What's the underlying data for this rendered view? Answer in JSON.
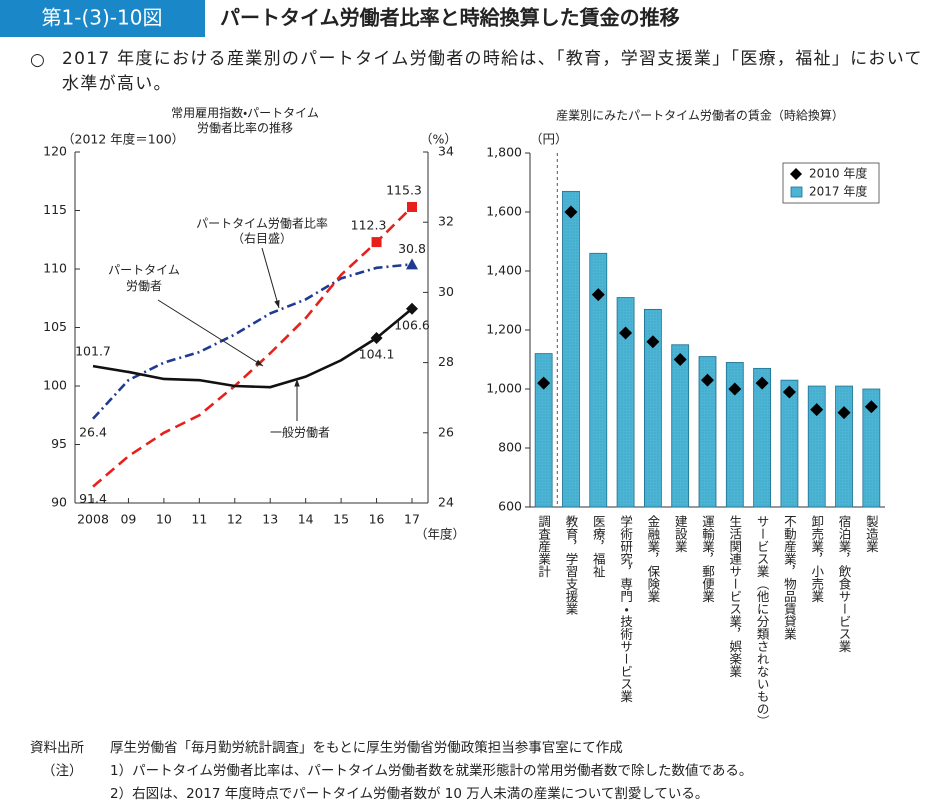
{
  "header": {
    "figure_number": "第1-(3)-10図",
    "title": "パートタイム労働者比率と時給換算した賃金の推移"
  },
  "lead": {
    "bullet": "○",
    "text": "2017 年度における産業別のパートタイム労働者の時給は、「教育，学習支援業」「医療，福祉」において水準が高い。"
  },
  "chart_data": [
    {
      "type": "line",
      "title": "常用雇用指数・パートタイム労働者比率の推移",
      "y_label": "（2012 年度＝100）",
      "y2_label": "（%）",
      "x_label": "（年度）",
      "categories": [
        "2008",
        "09",
        "10",
        "11",
        "12",
        "13",
        "14",
        "15",
        "16",
        "17"
      ],
      "ylim": [
        90,
        120
      ],
      "yticks": [
        90,
        95,
        100,
        105,
        110,
        115,
        120
      ],
      "y2lim": [
        24,
        34
      ],
      "y2ticks": [
        24,
        26,
        28,
        30,
        32,
        34
      ],
      "series": [
        {
          "name": "パートタイム労働者比率",
          "note": "（右目盛）",
          "axis": "y2",
          "color": "#1f3a93",
          "style": "dashdot",
          "values": [
            26.4,
            27.5,
            28.0,
            28.3,
            28.8,
            29.4,
            29.8,
            30.4,
            30.7,
            30.8
          ],
          "value_labels": [
            "26.4",
            null,
            null,
            null,
            null,
            null,
            null,
            null,
            null,
            "30.8"
          ]
        },
        {
          "name": "パートタイム労働者",
          "color": "#e8201c",
          "style": "dashed",
          "values": [
            91.4,
            94.0,
            96.0,
            97.5,
            100.0,
            102.8,
            105.8,
            109.5,
            112.3,
            115.3
          ],
          "value_labels": [
            "91.4",
            null,
            null,
            null,
            null,
            null,
            null,
            null,
            "112.3",
            "115.3"
          ]
        },
        {
          "name": "一般労働者",
          "color": "#111111",
          "style": "solid",
          "values": [
            101.7,
            101.2,
            100.6,
            100.5,
            100.0,
            99.9,
            100.8,
            102.2,
            104.1,
            106.6
          ],
          "value_labels": [
            "101.7",
            null,
            null,
            null,
            null,
            null,
            null,
            null,
            "104.1",
            "106.6"
          ]
        }
      ]
    },
    {
      "type": "bar",
      "title": "産業別にみたパートタイム労働者の賃金（時給換算）",
      "y_label": "（円）",
      "categories": [
        "調査産業計",
        "教育，学習支援業",
        "医療，福祉",
        "学術研究，専門・技術サービス業",
        "金融業，保険業",
        "建設業",
        "運輸業，郵便業",
        "生活関連サービス業，娯楽業",
        "サービス業（他に分類されないもの）",
        "不動産業，物品賃貸業",
        "卸売業，小売業",
        "宿泊業，飲食サービス業",
        "製造業"
      ],
      "ylim": [
        600,
        1800
      ],
      "yticks": [
        600,
        800,
        {
          "value": 1000,
          "label": "1,000"
        },
        {
          "value": 1200,
          "label": "1,200"
        },
        {
          "value": 1400,
          "label": "1,400"
        },
        {
          "value": 1600,
          "label": "1,600"
        },
        {
          "value": 1800,
          "label": "1,800"
        }
      ],
      "legend": "top-right",
      "series": [
        {
          "name": "2010 年度",
          "mark": "diamond",
          "color": "#000000",
          "values": [
            1020,
            1600,
            1320,
            1190,
            1160,
            1100,
            1030,
            1000,
            1020,
            990,
            930,
            920,
            940
          ]
        },
        {
          "name": "2017 年度",
          "mark": "bar",
          "color": "#4cb5d6",
          "values": [
            1120,
            1670,
            1460,
            1310,
            1270,
            1150,
            1110,
            1090,
            1070,
            1030,
            1010,
            1010,
            1000
          ]
        }
      ]
    }
  ],
  "source": {
    "label": "資料出所",
    "text": "厚生労働省「毎月勤労統計調査」をもとに厚生労働省労働政策担当参事官室にて作成"
  },
  "notes": {
    "label": "（注）",
    "items": [
      "1）パートタイム労働者比率は、パートタイム労働者数を就業形態計の常用労働者数で除した数値である。",
      "2）右図は、2017 年度時点でパートタイム労働者数が 10 万人未満の産業について割愛している。"
    ]
  }
}
